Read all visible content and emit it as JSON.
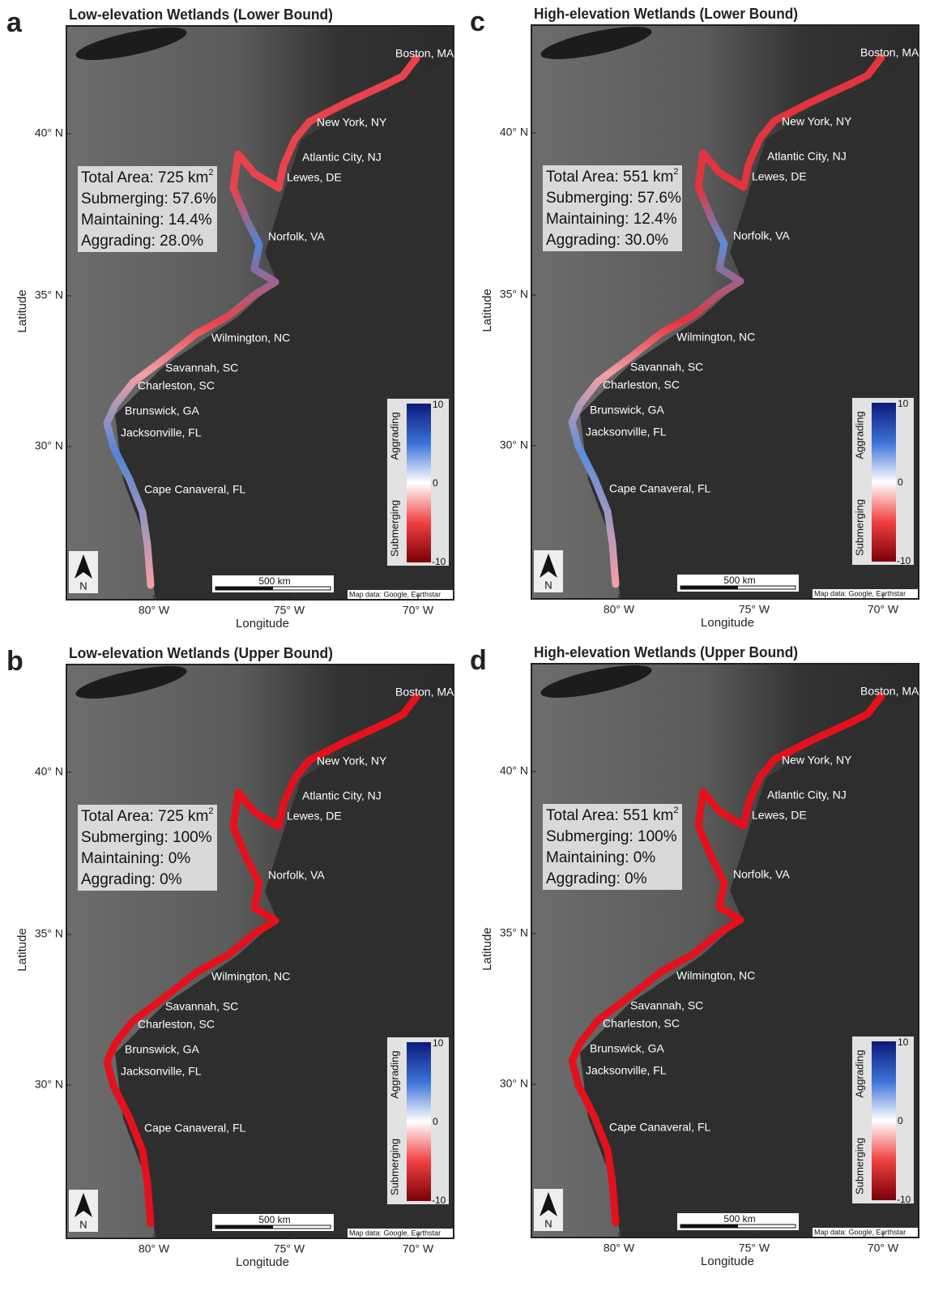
{
  "panels": [
    {
      "letter": "a",
      "title": "Low-elevation Wetlands (Lower Bound)",
      "stats": [
        {
          "text": "Total Area: 725 km",
          "sup": "2"
        },
        {
          "text": "Submerging: 57.6%"
        },
        {
          "text": "Maintaining: 14.4%"
        },
        {
          "text": "Aggrading: 28.0%"
        }
      ],
      "coast_colors": [
        "#e8434c",
        "#f2a0a4",
        "#4f86d6"
      ]
    },
    {
      "letter": "c",
      "title": "High-elevation Wetlands (Lower Bound)",
      "stats": [
        {
          "text": "Total Area: 551 km",
          "sup": "2"
        },
        {
          "text": "Submerging: 57.6%"
        },
        {
          "text": "Maintaining: 12.4%"
        },
        {
          "text": "Aggrading: 30.0%"
        }
      ],
      "coast_colors": [
        "#e3343e",
        "#f2a0a4",
        "#5a8fdb"
      ]
    },
    {
      "letter": "b",
      "title": "Low-elevation Wetlands (Upper Bound)",
      "stats": [
        {
          "text": "Total Area: 725 km",
          "sup": "2"
        },
        {
          "text": "Submerging: 100%"
        },
        {
          "text": "Maintaining: 0%"
        },
        {
          "text": "Aggrading: 0%"
        }
      ],
      "coast_colors": [
        "#e4111c",
        "#e4111c",
        "#e4111c"
      ]
    },
    {
      "letter": "d",
      "title": "High-elevation Wetlands (Upper Bound)",
      "stats": [
        {
          "text": "Total Area: 551 km",
          "sup": "2"
        },
        {
          "text": "Submerging: 100%"
        },
        {
          "text": "Maintaining: 0%"
        },
        {
          "text": "Aggrading: 0%"
        }
      ],
      "coast_colors": [
        "#e4111c",
        "#e4111c",
        "#e4111c"
      ]
    }
  ],
  "cities": [
    "Boston, MA",
    "New York, NY",
    "Atlantic City, NJ",
    "Lewes, DE",
    "Norfolk, VA",
    "Wilmington, NC",
    "Savannah, SC",
    "Charleston, SC",
    "Brunswick, GA",
    "Jacksonville, FL",
    "Cape Canaveral, FL"
  ],
  "lat_ticks": [
    "40° N",
    "35° N",
    "30° N"
  ],
  "lon_ticks": [
    "80° W",
    "75° W",
    "70° W"
  ],
  "y_label": "Latitude",
  "x_label": "Longitude",
  "colorbar": {
    "top": "10",
    "mid": "0",
    "bottom": "-10",
    "upper_label": "Aggrading",
    "lower_label": "Submerging"
  },
  "scale_label": "500 km",
  "attribution": "Map data: Google, Earthstar",
  "north": "N"
}
